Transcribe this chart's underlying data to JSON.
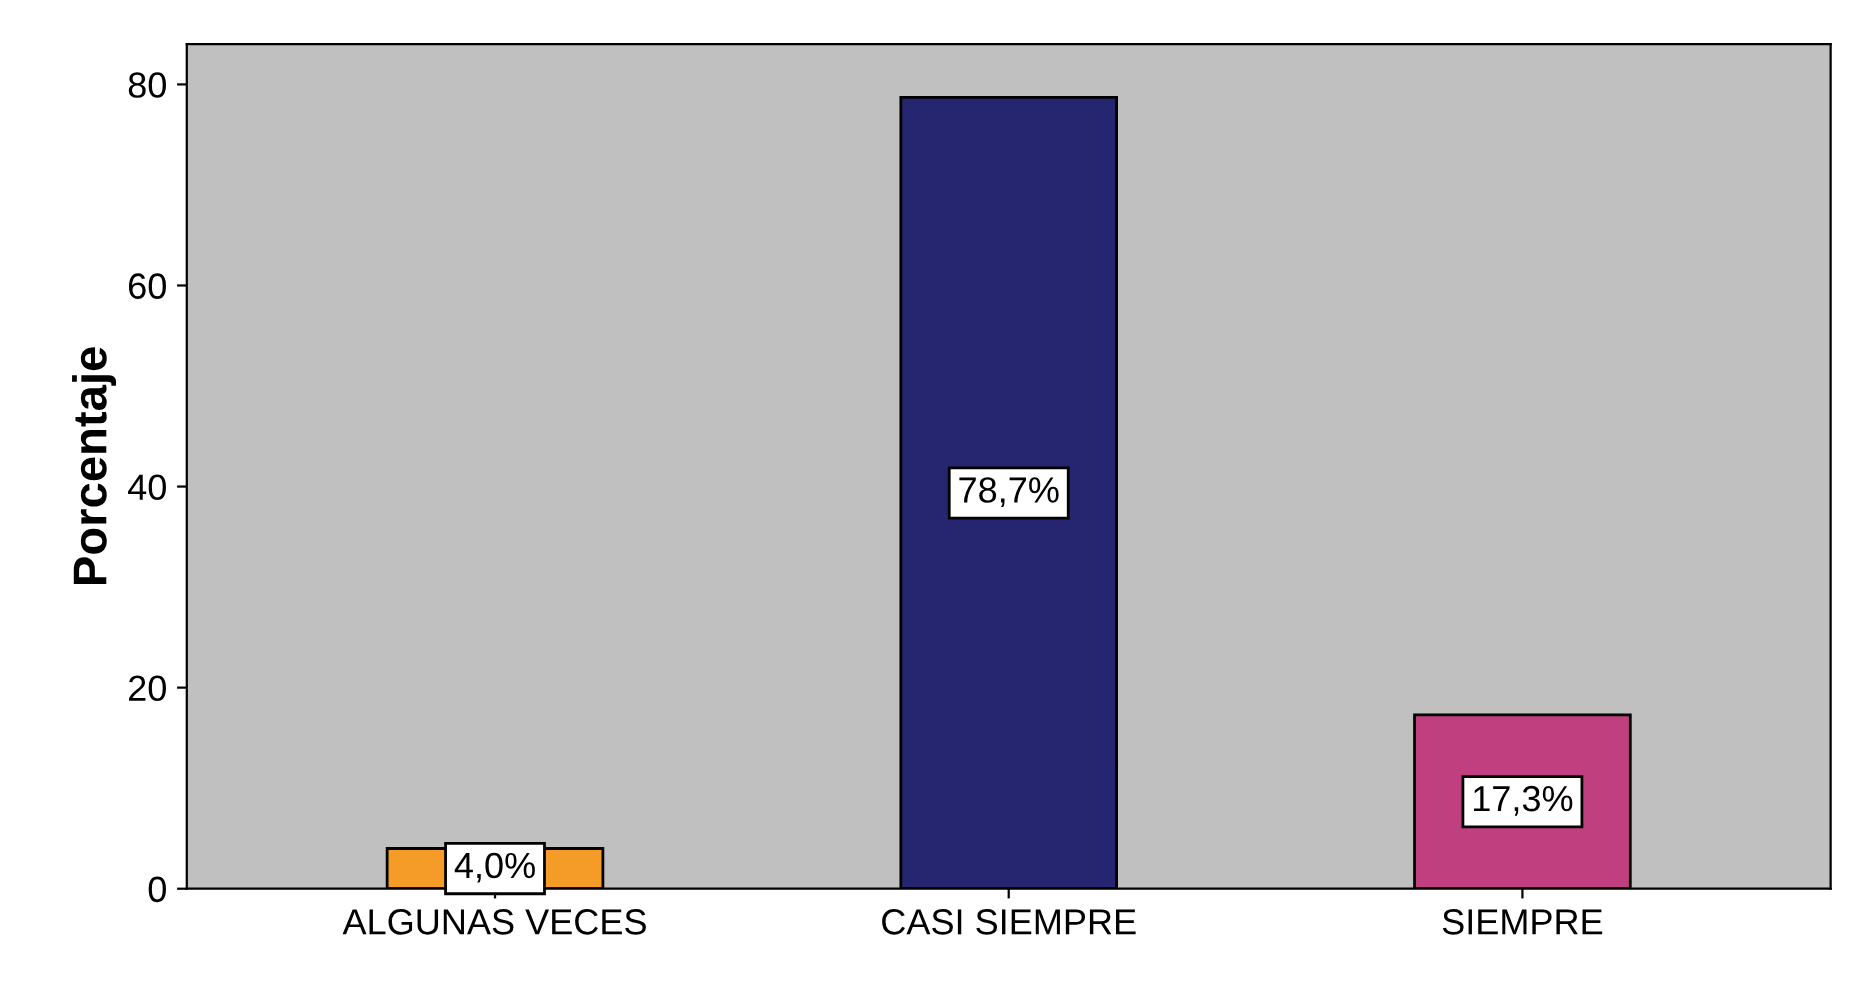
{
  "chart_data": {
    "type": "bar",
    "ylabel": "Porcentaje",
    "categories": [
      "ALGUNAS VECES",
      "CASI SIEMPRE",
      "SIEMPRE"
    ],
    "values": [
      4.0,
      78.7,
      17.3
    ],
    "colors": [
      "#f59b27",
      "#262670",
      "#c0407f"
    ],
    "value_labels": [
      "4,0%",
      "78,7%",
      "17,3%"
    ],
    "ylim": [
      0,
      84
    ],
    "yticks": [
      0,
      20,
      40,
      60,
      80
    ],
    "grid": false
  }
}
